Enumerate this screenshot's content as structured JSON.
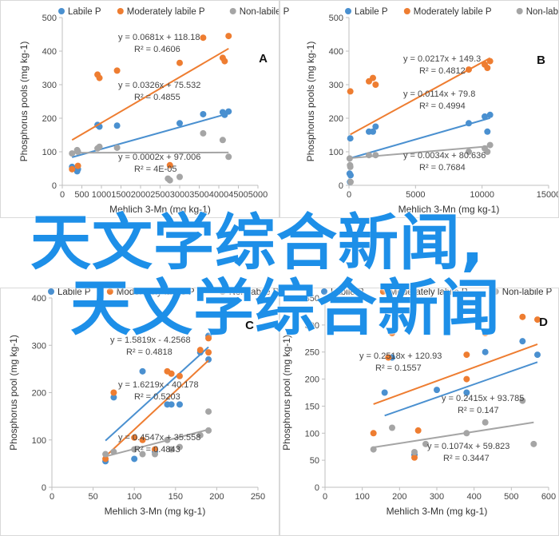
{
  "overlay": {
    "line1": "天文学综合新闻,",
    "line2": "天文学综合新闻"
  },
  "colors": {
    "labile": "#4a90d0",
    "moderate": "#ee7d31",
    "nonlabile": "#a5a5a5"
  },
  "chart_data": [
    {
      "id": "A",
      "type": "scatter",
      "label": "A",
      "xlabel": "Mehlich 3-Mn (mg kg-1)",
      "ylabel": "Phosphorus pools (mg kg-1)",
      "xlim": [
        0,
        5000
      ],
      "ylim": [
        0,
        500
      ],
      "xticks": [
        0,
        500,
        1000,
        1500,
        2000,
        2500,
        3000,
        3500,
        4000,
        4500,
        5000
      ],
      "yticks": [
        0,
        100,
        200,
        300,
        400,
        500
      ],
      "series": [
        {
          "name": "Labile P",
          "key": "labile",
          "x": [
            250,
            380,
            400,
            900,
            950,
            1400,
            3000,
            3600,
            4100,
            4150,
            4250
          ],
          "y": [
            55,
            42,
            48,
            180,
            175,
            178,
            185,
            212,
            218,
            210,
            220
          ],
          "trend": [
            0.0326,
            75.532
          ],
          "eq": [
            "y = 0.0326x + 75.532",
            "R² = 0.4855"
          ]
        },
        {
          "name": "Moderately labile P",
          "key": "moderate",
          "x": [
            250,
            400,
            900,
            950,
            1400,
            2750,
            3000,
            3600,
            4100,
            4150,
            4250
          ],
          "y": [
            48,
            58,
            330,
            320,
            342,
            60,
            365,
            440,
            380,
            370,
            445
          ],
          "trend": [
            0.0681,
            118.18
          ],
          "eq": [
            "y = 0.0681x + 118.18",
            "R² = 0.4606"
          ]
        },
        {
          "name": "Non-labile P",
          "key": "nonlabile",
          "x": [
            250,
            380,
            400,
            900,
            950,
            1400,
            2700,
            2750,
            3000,
            3600,
            4100,
            4250
          ],
          "y": [
            95,
            105,
            100,
            110,
            115,
            112,
            20,
            15,
            25,
            155,
            135,
            85
          ],
          "trend": [
            0.0002,
            97.006
          ],
          "eq": [
            "y = 0.0002x + 97.006",
            "R² = 4E-05"
          ]
        }
      ]
    },
    {
      "id": "B",
      "type": "scatter",
      "label": "B",
      "xlabel": "Mehlich 3-Mn (mg kg-1)",
      "ylabel": "Phosphorus pools (mg kg-1)",
      "xlim": [
        0,
        15000
      ],
      "ylim": [
        0,
        500
      ],
      "xticks": [
        0,
        5000,
        10000,
        15000
      ],
      "yticks": [
        0,
        100,
        200,
        300,
        400,
        500
      ],
      "series": [
        {
          "name": "Labile P",
          "key": "labile",
          "x": [
            50,
            80,
            100,
            120,
            1500,
            1800,
            2000,
            9000,
            10200,
            10400,
            10600
          ],
          "y": [
            35,
            10,
            140,
            30,
            160,
            160,
            175,
            185,
            205,
            160,
            210
          ],
          "trend": [
            0.0114,
            79.8
          ],
          "eq": [
            "y = 0.0114x + 79.8",
            "R² = 0.4994"
          ]
        },
        {
          "name": "Moderately labile P",
          "key": "moderate",
          "x": [
            100,
            1500,
            1800,
            2000,
            9000,
            10200,
            10400,
            10600
          ],
          "y": [
            280,
            310,
            320,
            300,
            345,
            360,
            350,
            370
          ],
          "trend": [
            0.0217,
            149.3
          ],
          "eq": [
            "y = 0.0217x + 149.3",
            "R² = 0.4812"
          ]
        },
        {
          "name": "Non-labile P",
          "key": "nonlabile",
          "x": [
            50,
            80,
            100,
            120,
            1500,
            2000,
            9000,
            10200,
            10400,
            10600
          ],
          "y": [
            80,
            60,
            55,
            10,
            90,
            90,
            100,
            110,
            100,
            120
          ],
          "trend": [
            0.0034,
            80.636
          ],
          "eq": [
            "y = 0.0034x + 80.636",
            "R² = 0.7684"
          ]
        }
      ]
    },
    {
      "id": "C",
      "type": "scatter",
      "label": "C",
      "xlabel": "Mehlich 3-Mn (mg kg-1)",
      "ylabel": "Phosphorus pool (mg kg-1)",
      "xlim": [
        0,
        250
      ],
      "ylim": [
        0,
        400
      ],
      "xticks": [
        0,
        50,
        100,
        150,
        200,
        250
      ],
      "yticks": [
        0,
        100,
        200,
        300,
        400
      ],
      "series": [
        {
          "name": "Labile P",
          "key": "labile",
          "x": [
            65,
            75,
            100,
            110,
            125,
            140,
            145,
            155,
            180,
            190,
            190
          ],
          "y": [
            55,
            190,
            60,
            245,
            75,
            175,
            175,
            175,
            285,
            270,
            320
          ],
          "trend": [
            1.5819,
            -4.2568
          ],
          "eq": [
            "y = 1.5819x - 4.2568",
            "R² = 0.4818"
          ]
        },
        {
          "name": "Moderately labile P",
          "key": "moderate",
          "x": [
            65,
            75,
            100,
            110,
            125,
            140,
            145,
            155,
            180,
            190,
            190
          ],
          "y": [
            60,
            200,
            105,
            100,
            80,
            245,
            240,
            235,
            290,
            285,
            315
          ],
          "trend": [
            1.6219,
            -40.178
          ],
          "eq": [
            "y = 1.6219x - 40.178",
            "R² = 0.5203"
          ]
        },
        {
          "name": "Non-labile P",
          "key": "nonlabile",
          "x": [
            65,
            75,
            100,
            110,
            125,
            140,
            145,
            155,
            180,
            190,
            190
          ],
          "y": [
            70,
            75,
            80,
            70,
            70,
            100,
            80,
            85,
            110,
            120,
            160
          ],
          "trend": [
            0.4547,
            35.558
          ],
          "eq": [
            "y = 0.4547x + 35.558",
            "R² = 0.4843"
          ]
        }
      ]
    },
    {
      "id": "D",
      "type": "scatter",
      "label": "D",
      "xlabel": "Mehlich 3-Mn (mg kg-1)",
      "ylabel": "Phosphorus pool (mg kg-1)",
      "xlim": [
        0,
        600
      ],
      "ylim": [
        0,
        350
      ],
      "xticks": [
        0,
        100,
        200,
        300,
        400,
        500,
        600
      ],
      "yticks": [
        0,
        50,
        100,
        150,
        200,
        250,
        300,
        350
      ],
      "series": [
        {
          "name": "Labile P",
          "key": "labile",
          "x": [
            160,
            180,
            240,
            300,
            380,
            430,
            530,
            570
          ],
          "y": [
            175,
            240,
            60,
            180,
            175,
            250,
            270,
            245
          ],
          "trend": [
            0.2415,
            93.785
          ],
          "eq": [
            "y = 0.2415x + 93.785",
            "R² = 0.147"
          ]
        },
        {
          "name": "Moderately labile P",
          "key": "moderate",
          "x": [
            130,
            170,
            180,
            240,
            250,
            380,
            380,
            430,
            530,
            570
          ],
          "y": [
            100,
            240,
            285,
            55,
            105,
            245,
            200,
            285,
            315,
            310
          ],
          "trend": [
            0.2518,
            120.93
          ],
          "eq": [
            "y = 0.2518x + 120.93",
            "R² = 0.1557"
          ]
        },
        {
          "name": "Non-labile P",
          "key": "nonlabile",
          "x": [
            130,
            180,
            240,
            270,
            380,
            430,
            530,
            560
          ],
          "y": [
            70,
            110,
            65,
            80,
            100,
            120,
            160,
            80
          ],
          "trend": [
            0.1074,
            59.823
          ],
          "eq": [
            "y = 0.1074x + 59.823",
            "R² = 0.3447"
          ]
        }
      ]
    }
  ]
}
